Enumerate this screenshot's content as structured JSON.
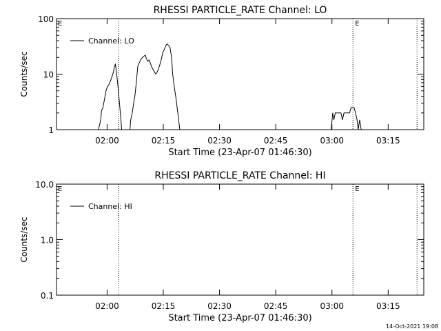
{
  "colors": {
    "background": "#ffffff",
    "foreground": "#000000"
  },
  "footer": {
    "timestamp": "14-Oct-2021 19:08"
  },
  "chart_data": [
    {
      "type": "line",
      "title": "RHESSI PARTICLE_RATE Channel: LO",
      "xlabel": "Start Time (23-Apr-07 01:46:30)",
      "ylabel": "Counts/sec",
      "x_unit": "minutes since 01:46:30",
      "xlim": [
        0,
        98
      ],
      "xticks": [
        {
          "x": 13.5,
          "label": "02:00"
        },
        {
          "x": 28.5,
          "label": "02:15"
        },
        {
          "x": 43.5,
          "label": "02:30"
        },
        {
          "x": 58.5,
          "label": "02:45"
        },
        {
          "x": 73.5,
          "label": "03:00"
        },
        {
          "x": 88.5,
          "label": "03:15"
        }
      ],
      "yscale": "log",
      "ylim": [
        1,
        100
      ],
      "yticks": [
        {
          "y": 1,
          "label": "1"
        },
        {
          "y": 10,
          "label": "10"
        },
        {
          "y": 100,
          "label": "100"
        }
      ],
      "grid": false,
      "legend": {
        "placement": "top-left",
        "label": "Channel: LO"
      },
      "markers": [
        {
          "x": 16.6,
          "label": ""
        },
        {
          "x": 79.1,
          "label": "E"
        },
        {
          "x": 96.2,
          "label": ""
        }
      ],
      "corner_label": "E",
      "series": [
        {
          "name": "Channel: LO",
          "segments": [
            [
              [
                11.2,
                0.95
              ],
              [
                11.8,
                1.5
              ],
              [
                12.0,
                2.2
              ],
              [
                12.4,
                2.5
              ],
              [
                12.8,
                3.5
              ],
              [
                13.2,
                5
              ],
              [
                13.6,
                6
              ],
              [
                14.0,
                6.5
              ],
              [
                14.4,
                7.5
              ],
              [
                14.8,
                9
              ],
              [
                15.2,
                11
              ],
              [
                15.5,
                14
              ],
              [
                15.7,
                15
              ],
              [
                16.0,
                11
              ],
              [
                16.4,
                6
              ],
              [
                16.8,
                3
              ],
              [
                17.2,
                1.5
              ],
              [
                17.4,
                0.95
              ]
            ],
            [
              [
                19.6,
                0.95
              ],
              [
                19.8,
                1.5
              ],
              [
                20.2,
                2
              ],
              [
                20.6,
                3
              ],
              [
                20.9,
                4
              ],
              [
                21.3,
                7
              ],
              [
                21.7,
                14
              ],
              [
                22.1,
                16
              ],
              [
                22.4,
                18
              ],
              [
                22.8,
                19.5
              ],
              [
                23.3,
                21
              ],
              [
                23.7,
                22
              ],
              [
                24.0,
                19
              ],
              [
                24.4,
                17
              ],
              [
                24.7,
                18
              ],
              [
                25.0,
                16
              ],
              [
                25.4,
                13.5
              ],
              [
                25.8,
                12
              ],
              [
                26.1,
                11
              ],
              [
                26.5,
                10
              ],
              [
                26.9,
                11
              ],
              [
                27.3,
                13
              ],
              [
                27.6,
                15
              ],
              [
                28.0,
                19
              ],
              [
                28.4,
                25
              ],
              [
                28.8,
                28
              ],
              [
                29.1,
                32
              ],
              [
                29.5,
                35
              ],
              [
                29.9,
                33
              ],
              [
                30.3,
                30
              ],
              [
                30.7,
                20
              ],
              [
                31.0,
                10
              ],
              [
                31.4,
                6
              ],
              [
                31.8,
                4
              ],
              [
                32.2,
                2.5
              ],
              [
                32.6,
                1.5
              ],
              [
                32.9,
                0.95
              ]
            ],
            [
              [
                73.3,
                0.95
              ],
              [
                73.7,
                2
              ],
              [
                74.0,
                1.5
              ],
              [
                74.4,
                2
              ],
              [
                75.2,
                2
              ],
              [
                75.9,
                2
              ],
              [
                76.3,
                1.5
              ],
              [
                76.7,
                2
              ],
              [
                77.5,
                2
              ],
              [
                78.2,
                2
              ],
              [
                78.6,
                2.5
              ],
              [
                79.4,
                2.5
              ],
              [
                79.8,
                2
              ],
              [
                80.2,
                1.5
              ],
              [
                80.5,
                1
              ],
              [
                80.9,
                1.5
              ],
              [
                81.3,
                1
              ],
              [
                81.7,
                0.95
              ]
            ]
          ]
        }
      ]
    },
    {
      "type": "line",
      "title": "RHESSI PARTICLE_RATE Channel: HI",
      "xlabel": "Start Time (23-Apr-07 01:46:30)",
      "ylabel": "Counts/sec",
      "x_unit": "minutes since 01:46:30",
      "xlim": [
        0,
        98
      ],
      "xticks": [
        {
          "x": 13.5,
          "label": "02:00"
        },
        {
          "x": 28.5,
          "label": "02:15"
        },
        {
          "x": 43.5,
          "label": "02:30"
        },
        {
          "x": 58.5,
          "label": "02:45"
        },
        {
          "x": 73.5,
          "label": "03:00"
        },
        {
          "x": 88.5,
          "label": "03:15"
        }
      ],
      "yscale": "log",
      "ylim": [
        0.1,
        10
      ],
      "yticks": [
        {
          "y": 0.1,
          "label": "0.1"
        },
        {
          "y": 1,
          "label": "1.0"
        },
        {
          "y": 10,
          "label": "10.0"
        }
      ],
      "grid": false,
      "legend": {
        "placement": "top-left",
        "label": "Channel: HI"
      },
      "markers": [
        {
          "x": 16.6,
          "label": ""
        },
        {
          "x": 79.1,
          "label": "E"
        },
        {
          "x": 96.2,
          "label": ""
        }
      ],
      "corner_label": "E",
      "series": [
        {
          "name": "Channel: HI",
          "segments": []
        }
      ]
    }
  ]
}
